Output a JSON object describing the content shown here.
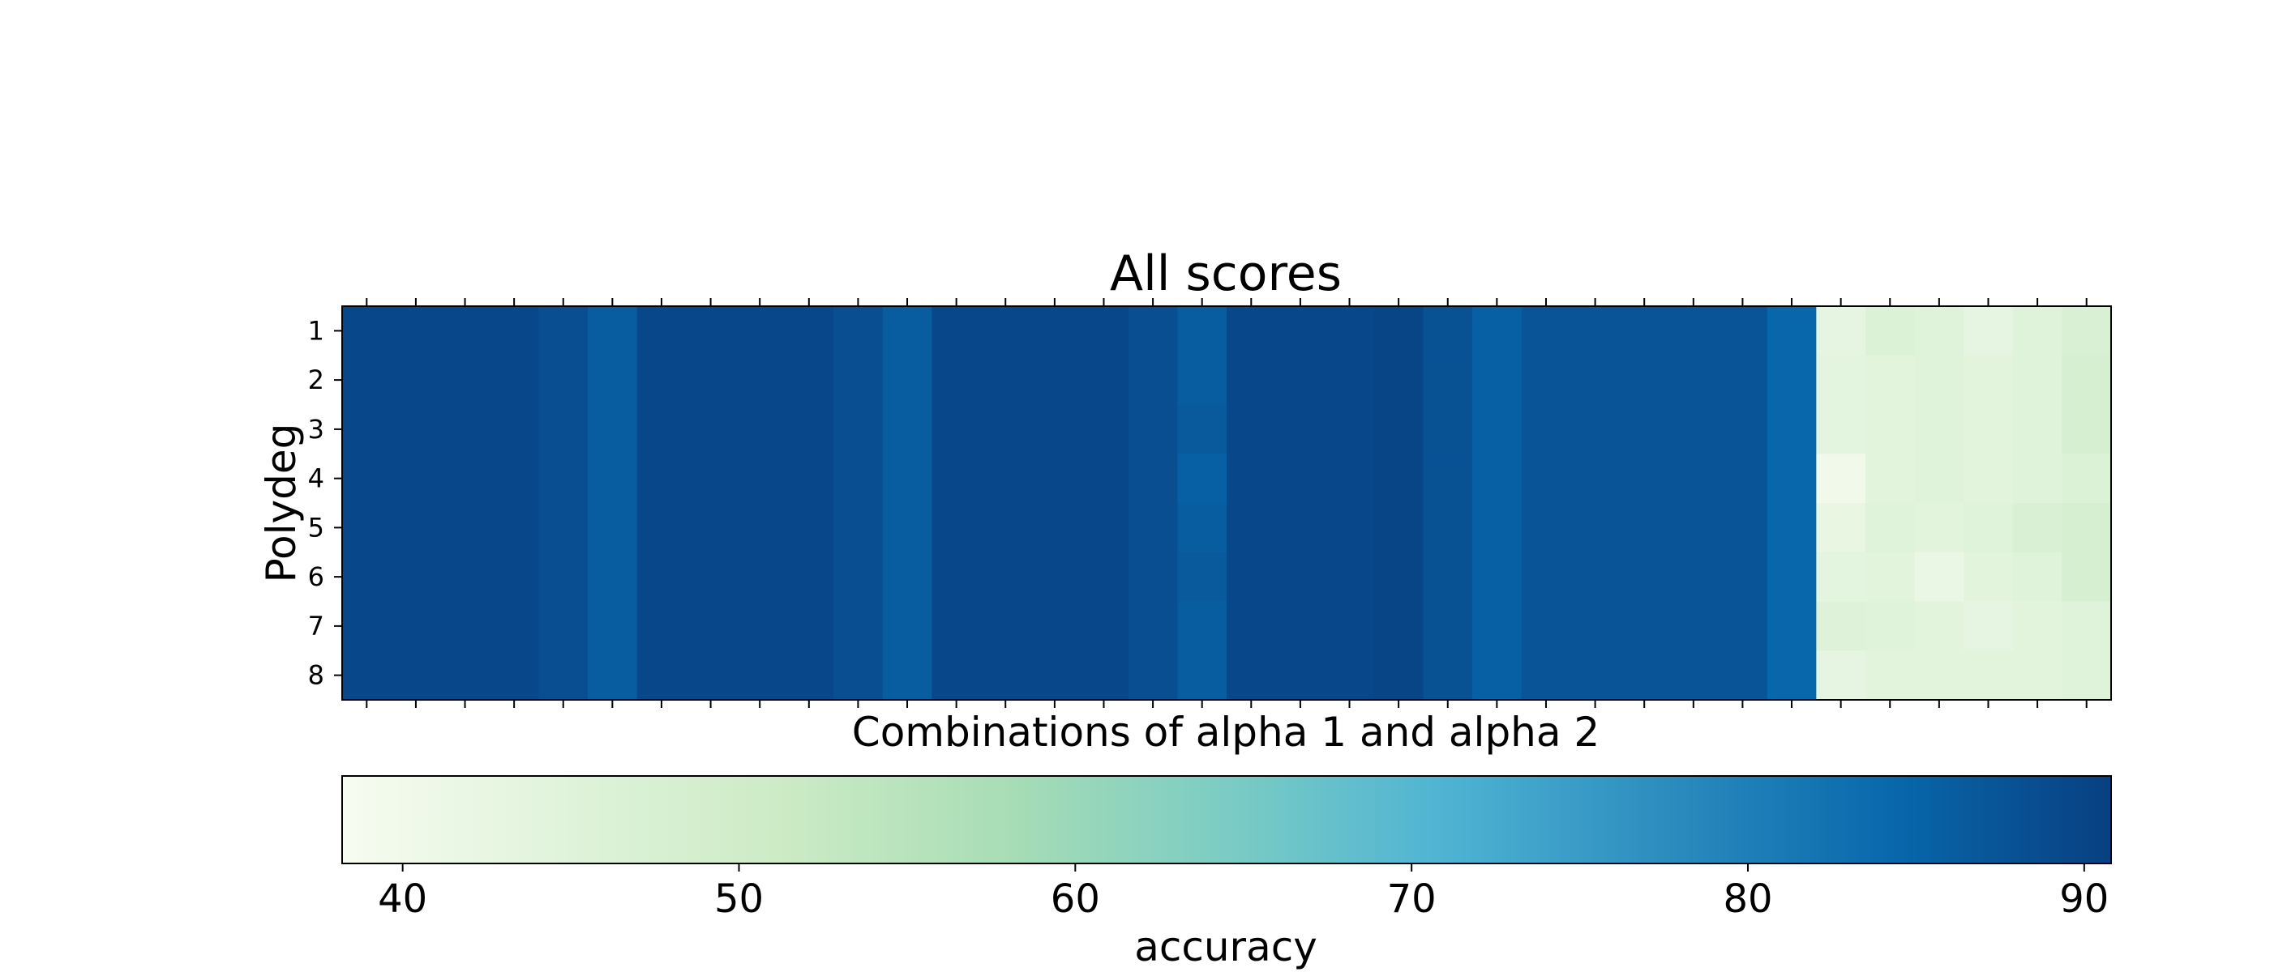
{
  "chart_data": {
    "type": "heatmap",
    "title": "All scores",
    "xlabel": "Combinations of alpha 1 and alpha 2",
    "ylabel": "Polydeg",
    "y_tick_labels": [
      "1",
      "2",
      "3",
      "4",
      "5",
      "6",
      "7",
      "8"
    ],
    "x_tick_labels_shown": false,
    "n_columns": 36,
    "colormap": "GnBu",
    "colorbar": {
      "label": "accuracy",
      "orientation": "horizontal",
      "range": [
        38.2,
        90.8
      ],
      "ticks": [
        40,
        50,
        60,
        70,
        80,
        90
      ]
    },
    "values": [
      [
        89.5,
        89.5,
        89.5,
        89.5,
        88.5,
        86.0,
        89.5,
        89.5,
        89.5,
        89.5,
        88.5,
        86.0,
        89.5,
        89.5,
        89.5,
        89.5,
        88.5,
        86.0,
        89.5,
        89.5,
        89.5,
        90.0,
        88.0,
        85.5,
        87.5,
        87.5,
        87.5,
        87.5,
        87.5,
        84.5,
        43.0,
        46.0,
        45.0,
        43.0,
        45.0,
        47.0
      ],
      [
        89.5,
        89.5,
        89.5,
        89.5,
        88.5,
        86.0,
        89.5,
        89.5,
        89.5,
        89.5,
        88.5,
        86.0,
        89.5,
        89.5,
        89.5,
        89.5,
        88.5,
        86.0,
        89.5,
        89.5,
        89.5,
        90.0,
        88.0,
        85.5,
        87.5,
        87.5,
        87.5,
        87.5,
        87.5,
        84.5,
        43.5,
        44.0,
        45.0,
        44.0,
        45.0,
        48.0
      ],
      [
        89.5,
        89.5,
        89.5,
        89.5,
        88.5,
        86.0,
        89.5,
        89.5,
        89.5,
        89.5,
        88.5,
        86.0,
        89.5,
        89.5,
        89.5,
        89.5,
        88.5,
        86.5,
        89.5,
        89.5,
        89.5,
        90.0,
        88.0,
        85.5,
        87.5,
        87.5,
        87.5,
        87.5,
        87.5,
        84.5,
        43.5,
        44.0,
        45.0,
        44.0,
        45.0,
        48.0
      ],
      [
        89.5,
        89.5,
        89.5,
        89.5,
        88.5,
        86.0,
        89.5,
        89.5,
        89.5,
        89.5,
        88.5,
        86.0,
        89.5,
        89.5,
        89.5,
        89.5,
        88.5,
        85.5,
        89.5,
        89.5,
        89.5,
        90.0,
        88.0,
        85.5,
        87.5,
        87.5,
        87.5,
        87.5,
        87.5,
        84.5,
        40.0,
        44.0,
        45.0,
        44.0,
        45.0,
        46.0
      ],
      [
        89.5,
        89.5,
        89.5,
        89.5,
        88.5,
        86.0,
        89.5,
        89.5,
        89.5,
        89.5,
        88.5,
        86.0,
        89.5,
        89.5,
        89.5,
        89.5,
        88.5,
        86.0,
        89.5,
        89.5,
        89.5,
        90.0,
        88.0,
        85.5,
        87.5,
        87.5,
        87.5,
        87.5,
        87.5,
        84.5,
        42.5,
        45.0,
        44.0,
        45.0,
        47.0,
        48.0
      ],
      [
        89.5,
        89.5,
        89.5,
        89.5,
        88.5,
        86.0,
        89.5,
        89.5,
        89.5,
        89.5,
        88.5,
        86.0,
        89.5,
        89.5,
        89.5,
        89.5,
        88.5,
        86.5,
        89.5,
        89.5,
        89.5,
        90.0,
        88.0,
        85.5,
        87.5,
        87.5,
        87.5,
        87.5,
        87.5,
        84.5,
        43.5,
        44.0,
        41.5,
        44.0,
        45.0,
        48.0
      ],
      [
        89.5,
        89.5,
        89.5,
        89.5,
        88.5,
        86.0,
        89.5,
        89.5,
        89.5,
        89.5,
        88.5,
        86.0,
        89.5,
        89.5,
        89.5,
        89.5,
        88.5,
        86.0,
        89.5,
        89.5,
        89.5,
        90.0,
        88.0,
        85.5,
        87.5,
        87.5,
        87.5,
        87.5,
        87.5,
        84.5,
        45.5,
        45.0,
        44.0,
        43.0,
        44.0,
        45.0
      ],
      [
        89.5,
        89.5,
        89.5,
        89.5,
        88.5,
        86.0,
        89.5,
        89.5,
        89.5,
        89.5,
        88.5,
        86.0,
        89.5,
        89.5,
        89.5,
        89.5,
        88.5,
        86.0,
        89.5,
        89.5,
        89.5,
        90.0,
        88.0,
        85.5,
        87.5,
        87.5,
        87.5,
        87.5,
        87.5,
        84.5,
        43.0,
        44.0,
        44.0,
        44.0,
        44.0,
        45.0
      ]
    ]
  }
}
